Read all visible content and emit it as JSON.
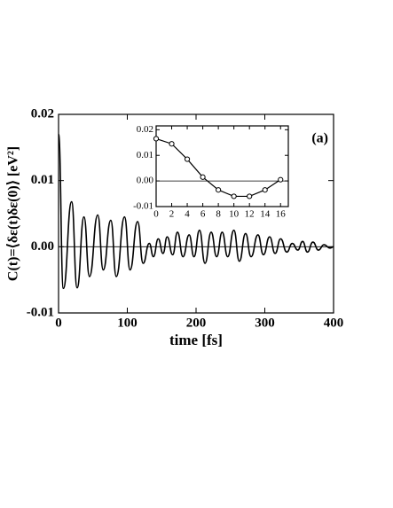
{
  "chart_data": [
    {
      "type": "line",
      "xlabel": "time [fs]",
      "ylabel": "C(t)=⟨δε(t)δε(0)⟩  [eV²]",
      "annotation": "(a)",
      "color": "#000000",
      "reference_line": 0,
      "xlim": [
        0,
        400
      ],
      "xticks": [
        0,
        100,
        200,
        300,
        400
      ],
      "ylim": [
        -0.01,
        0.02
      ],
      "yticks": [
        {
          "value": -0.01,
          "label": "-0.01"
        },
        {
          "value": 0,
          "label": "0.00"
        },
        {
          "value": 0.01,
          "label": "0.01"
        },
        {
          "value": 0.02,
          "label": "0.02"
        }
      ],
      "x": [
        0,
        7,
        19,
        27,
        37,
        45,
        57,
        65,
        76,
        84,
        96,
        104,
        115,
        123,
        132,
        138,
        145,
        152,
        158,
        166,
        173,
        181,
        190,
        197,
        205,
        213,
        222,
        230,
        238,
        246,
        255,
        263,
        272,
        280,
        290,
        298,
        307,
        315,
        323,
        332,
        340,
        348,
        355,
        362,
        370,
        378,
        386,
        395,
        400
      ],
      "values": [
        0.017,
        -0.0063,
        0.0068,
        -0.0062,
        0.0045,
        -0.0045,
        0.0048,
        -0.0035,
        0.004,
        -0.0045,
        0.0045,
        -0.0035,
        0.0038,
        -0.0025,
        0.0005,
        -0.0015,
        0.0012,
        -0.001,
        0.0015,
        -0.0012,
        0.0022,
        -0.0015,
        0.0018,
        -0.0015,
        0.0025,
        -0.0025,
        0.0022,
        -0.0015,
        0.0022,
        -0.0015,
        0.0025,
        -0.0022,
        0.002,
        -0.0015,
        0.0018,
        -0.0012,
        0.0015,
        -0.001,
        0.0012,
        -0.0008,
        0.0005,
        -0.0005,
        0.0008,
        -0.0008,
        0.0007,
        -0.0005,
        0.0003,
        -0.0002,
        0
      ]
    },
    {
      "type": "line-markers",
      "color": "#000000",
      "reference_line": 0,
      "xlim": [
        0,
        17
      ],
      "xticks": [
        0,
        2,
        4,
        6,
        8,
        10,
        12,
        14,
        16
      ],
      "ylim": [
        -0.01,
        0.0215
      ],
      "yticks": [
        {
          "value": -0.01,
          "label": "-0.01"
        },
        {
          "value": 0,
          "label": "0.00"
        },
        {
          "value": 0.01,
          "label": "0.01"
        },
        {
          "value": 0.02,
          "label": "0.02"
        }
      ],
      "x": [
        0,
        2,
        4,
        6,
        8,
        10,
        12,
        14,
        16
      ],
      "values": [
        0.0165,
        0.0145,
        0.0085,
        0.0015,
        -0.0035,
        -0.006,
        -0.006,
        -0.0035,
        0.0005
      ]
    }
  ]
}
